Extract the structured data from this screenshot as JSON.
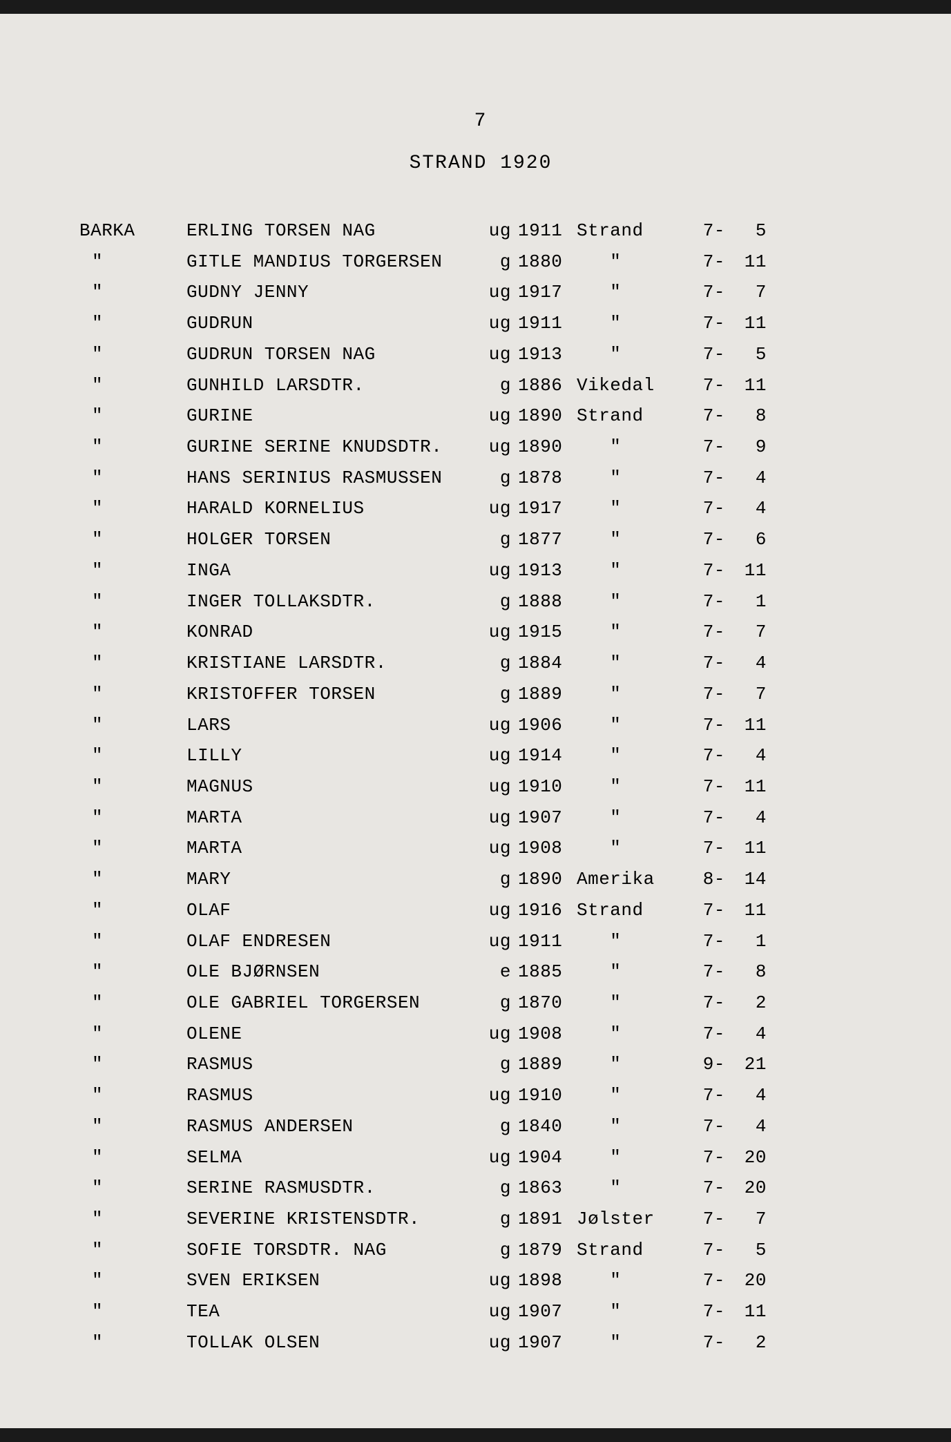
{
  "page_number": "7",
  "header": "STRAND 1920",
  "colors": {
    "background": "#e8e6e2",
    "text": "#1a1a1a",
    "page_border": "#1a1a1a"
  },
  "typography": {
    "font_family": "Courier New",
    "font_size": 26,
    "line_height": 1.72,
    "letter_spacing": 0.5
  },
  "columns": {
    "place_width": 155,
    "name_width": 425,
    "status_width": 55,
    "year_width": 85,
    "origin_width": 160,
    "ref1_width": 55,
    "ref2_width": 60
  },
  "rows": [
    {
      "place": "BARKA",
      "name": "ERLING TORSEN NAG",
      "status": "ug",
      "year": "1911",
      "origin": "Strand",
      "ref1": "7-",
      "ref2": "5"
    },
    {
      "place": "\"",
      "name": "GITLE MANDIUS TORGERSEN",
      "status": "g",
      "year": "1880",
      "origin": "\"",
      "ref1": "7-",
      "ref2": "11"
    },
    {
      "place": "\"",
      "name": "GUDNY JENNY",
      "status": "ug",
      "year": "1917",
      "origin": "\"",
      "ref1": "7-",
      "ref2": "7"
    },
    {
      "place": "\"",
      "name": "GUDRUN",
      "status": "ug",
      "year": "1911",
      "origin": "\"",
      "ref1": "7-",
      "ref2": "11"
    },
    {
      "place": "\"",
      "name": "GUDRUN TORSEN NAG",
      "status": "ug",
      "year": "1913",
      "origin": "\"",
      "ref1": "7-",
      "ref2": "5"
    },
    {
      "place": "\"",
      "name": "GUNHILD LARSDTR.",
      "status": "g",
      "year": "1886",
      "origin": "Vikedal",
      "ref1": "7-",
      "ref2": "11"
    },
    {
      "place": "\"",
      "name": "GURINE",
      "status": "ug",
      "year": "1890",
      "origin": "Strand",
      "ref1": "7-",
      "ref2": "8"
    },
    {
      "place": "\"",
      "name": "GURINE SERINE KNUDSDTR.",
      "status": "ug",
      "year": "1890",
      "origin": "\"",
      "ref1": "7-",
      "ref2": "9"
    },
    {
      "place": "\"",
      "name": "HANS SERINIUS RASMUSSEN",
      "status": "g",
      "year": "1878",
      "origin": "\"",
      "ref1": "7-",
      "ref2": "4"
    },
    {
      "place": "\"",
      "name": "HARALD KORNELIUS",
      "status": "ug",
      "year": "1917",
      "origin": "\"",
      "ref1": "7-",
      "ref2": "4"
    },
    {
      "place": "\"",
      "name": "HOLGER TORSEN",
      "status": "g",
      "year": "1877",
      "origin": "\"",
      "ref1": "7-",
      "ref2": "6"
    },
    {
      "place": "\"",
      "name": "INGA",
      "status": "ug",
      "year": "1913",
      "origin": "\"",
      "ref1": "7-",
      "ref2": "11"
    },
    {
      "place": "\"",
      "name": "INGER TOLLAKSDTR.",
      "status": "g",
      "year": "1888",
      "origin": "\"",
      "ref1": "7-",
      "ref2": "1"
    },
    {
      "place": "\"",
      "name": "KONRAD",
      "status": "ug",
      "year": "1915",
      "origin": "\"",
      "ref1": "7-",
      "ref2": "7"
    },
    {
      "place": "\"",
      "name": "KRISTIANE LARSDTR.",
      "status": "g",
      "year": "1884",
      "origin": "\"",
      "ref1": "7-",
      "ref2": "4"
    },
    {
      "place": "\"",
      "name": "KRISTOFFER TORSEN",
      "status": "g",
      "year": "1889",
      "origin": "\"",
      "ref1": "7-",
      "ref2": "7"
    },
    {
      "place": "\"",
      "name": "LARS",
      "status": "ug",
      "year": "1906",
      "origin": "\"",
      "ref1": "7-",
      "ref2": "11"
    },
    {
      "place": "\"",
      "name": "LILLY",
      "status": "ug",
      "year": "1914",
      "origin": "\"",
      "ref1": "7-",
      "ref2": "4"
    },
    {
      "place": "\"",
      "name": "MAGNUS",
      "status": "ug",
      "year": "1910",
      "origin": "\"",
      "ref1": "7-",
      "ref2": "11"
    },
    {
      "place": "\"",
      "name": "MARTA",
      "status": "ug",
      "year": "1907",
      "origin": "\"",
      "ref1": "7-",
      "ref2": "4"
    },
    {
      "place": "\"",
      "name": "MARTA",
      "status": "ug",
      "year": "1908",
      "origin": "\"",
      "ref1": "7-",
      "ref2": "11"
    },
    {
      "place": "\"",
      "name": "MARY",
      "status": "g",
      "year": "1890",
      "origin": "Amerika",
      "ref1": "8-",
      "ref2": "14"
    },
    {
      "place": "\"",
      "name": "OLAF",
      "status": "ug",
      "year": "1916",
      "origin": "Strand",
      "ref1": "7-",
      "ref2": "11"
    },
    {
      "place": "\"",
      "name": "OLAF ENDRESEN",
      "status": "ug",
      "year": "1911",
      "origin": "\"",
      "ref1": "7-",
      "ref2": "1"
    },
    {
      "place": "\"",
      "name": "OLE BJØRNSEN",
      "status": "e",
      "year": "1885",
      "origin": "\"",
      "ref1": "7-",
      "ref2": "8"
    },
    {
      "place": "\"",
      "name": "OLE GABRIEL TORGERSEN",
      "status": "g",
      "year": "1870",
      "origin": "\"",
      "ref1": "7-",
      "ref2": "2"
    },
    {
      "place": "\"",
      "name": "OLENE",
      "status": "ug",
      "year": "1908",
      "origin": "\"",
      "ref1": "7-",
      "ref2": "4"
    },
    {
      "place": "\"",
      "name": "RASMUS",
      "status": "g",
      "year": "1889",
      "origin": "\"",
      "ref1": "9-",
      "ref2": "21"
    },
    {
      "place": "\"",
      "name": "RASMUS",
      "status": "ug",
      "year": "1910",
      "origin": "\"",
      "ref1": "7-",
      "ref2": "4"
    },
    {
      "place": "\"",
      "name": "RASMUS ANDERSEN",
      "status": "g",
      "year": "1840",
      "origin": "\"",
      "ref1": "7-",
      "ref2": "4"
    },
    {
      "place": "\"",
      "name": "SELMA",
      "status": "ug",
      "year": "1904",
      "origin": "\"",
      "ref1": "7-",
      "ref2": "20"
    },
    {
      "place": "\"",
      "name": "SERINE RASMUSDTR.",
      "status": "g",
      "year": "1863",
      "origin": "\"",
      "ref1": "7-",
      "ref2": "20"
    },
    {
      "place": "\"",
      "name": "SEVERINE KRISTENSDTR.",
      "status": "g",
      "year": "1891",
      "origin": "Jølster",
      "ref1": "7-",
      "ref2": "7"
    },
    {
      "place": "\"",
      "name": "SOFIE TORSDTR. NAG",
      "status": "g",
      "year": "1879",
      "origin": "Strand",
      "ref1": "7-",
      "ref2": "5"
    },
    {
      "place": "\"",
      "name": "SVEN ERIKSEN",
      "status": "ug",
      "year": "1898",
      "origin": "\"",
      "ref1": "7-",
      "ref2": "20"
    },
    {
      "place": "\"",
      "name": "TEA",
      "status": "ug",
      "year": "1907",
      "origin": "\"",
      "ref1": "7-",
      "ref2": "11"
    },
    {
      "place": "\"",
      "name": "TOLLAK OLSEN",
      "status": "ug",
      "year": "1907",
      "origin": "\"",
      "ref1": "7-",
      "ref2": "2"
    }
  ]
}
